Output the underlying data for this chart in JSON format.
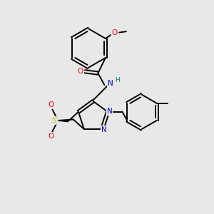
{
  "bg_color": "#e8e8e8",
  "bond_color": "#000000",
  "atom_colors": {
    "N": "#0000cc",
    "O": "#ff0000",
    "S": "#cccc00",
    "H": "#008080",
    "C": "#000000"
  },
  "figsize": [
    3.0,
    3.0
  ],
  "dpi": 100
}
